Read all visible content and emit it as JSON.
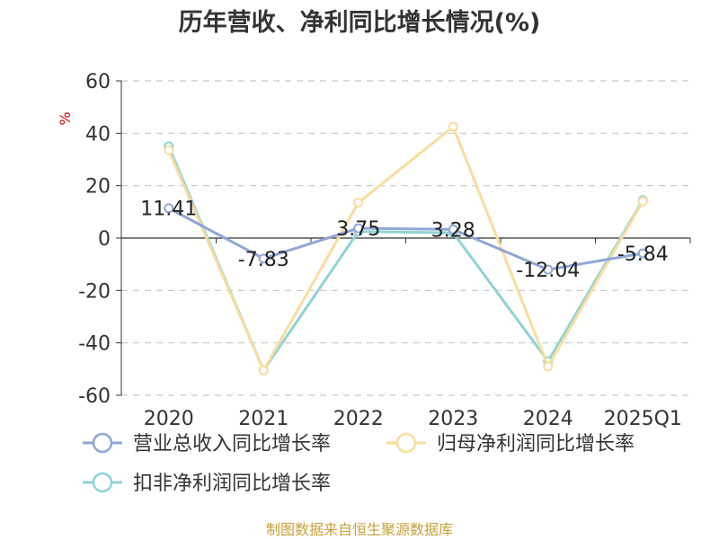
{
  "chart_data": {
    "type": "line",
    "title": "历年营收、净利同比增长情况(%)",
    "ylabel": "%",
    "categories": [
      "2020",
      "2021",
      "2022",
      "2023",
      "2024",
      "2025Q1"
    ],
    "ylim": [
      -60,
      60
    ],
    "yticks": [
      -60,
      -40,
      -20,
      0,
      20,
      40,
      60
    ],
    "grid": true,
    "legend_position": "bottom",
    "series": [
      {
        "name": "营业总收入同比增长率",
        "color": "#8fa6d6",
        "values": [
          11.41,
          -7.83,
          3.75,
          3.28,
          -12.04,
          -5.84
        ],
        "labels": [
          "11.41",
          "-7.83",
          "3.75",
          "3.28",
          "-12.04",
          "-5.84"
        ]
      },
      {
        "name": "归母净利润同比增长率",
        "color": "#f9dc9e",
        "values": [
          33.5,
          -50.5,
          13.5,
          42.5,
          -49,
          14
        ]
      },
      {
        "name": "扣非净利润同比增长率",
        "color": "#8ed3d6",
        "values": [
          35,
          -50.5,
          2.5,
          2,
          -47,
          14.5
        ]
      }
    ]
  },
  "source": "制图数据来自恒生聚源数据库"
}
